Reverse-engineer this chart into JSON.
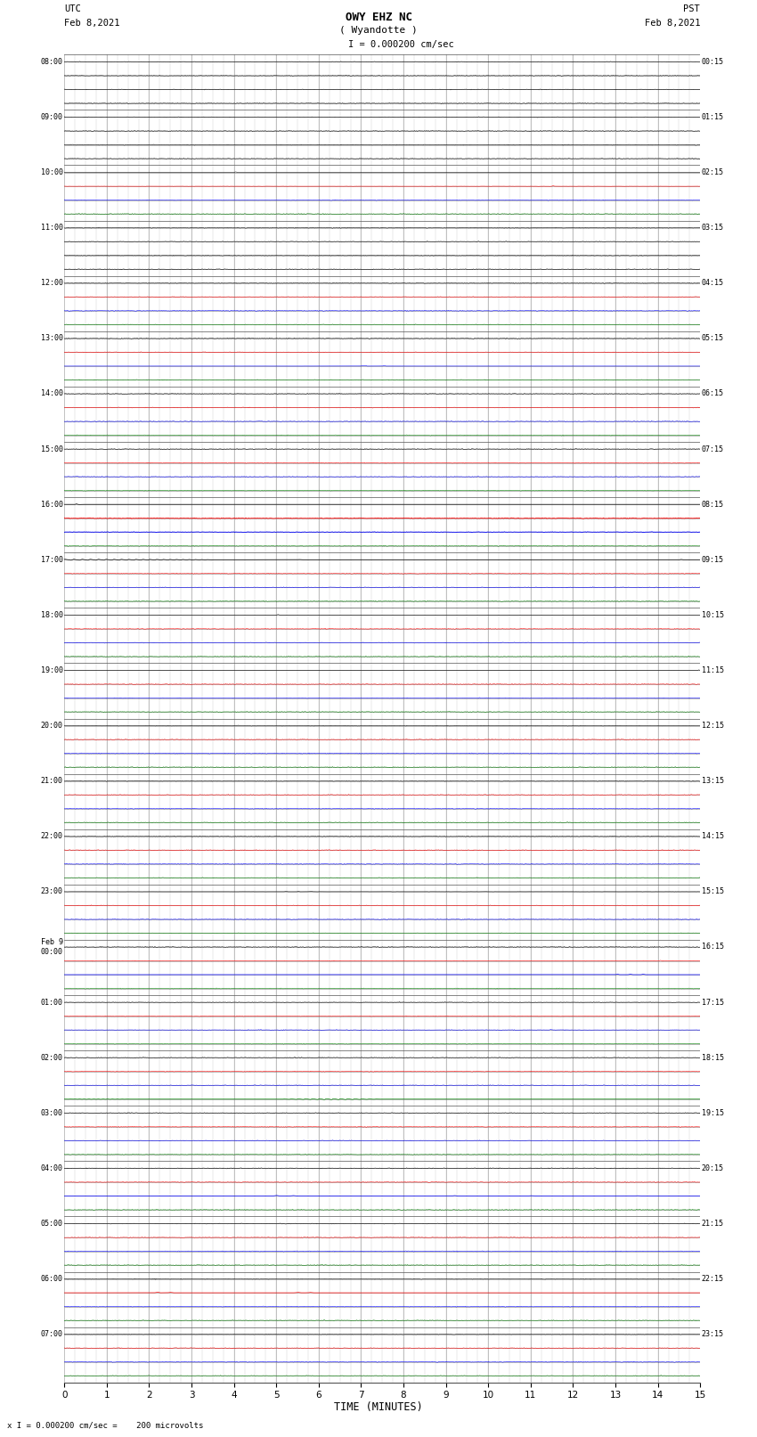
{
  "title_line1": "OWY EHZ NC",
  "title_line2": "( Wyandotte )",
  "scale_label": "I = 0.000200 cm/sec",
  "footer_label": "x I = 0.000200 cm/sec =    200 microvolts",
  "xlabel": "TIME (MINUTES)",
  "background_color": "#ffffff",
  "grid_major_color": "#000000",
  "grid_minor_color": "#888888",
  "fig_width": 8.5,
  "fig_height": 16.13,
  "dpi": 100,
  "num_rows": 24,
  "row_labels_left": [
    "08:00",
    "09:00",
    "10:00",
    "11:00",
    "12:00",
    "13:00",
    "14:00",
    "15:00",
    "16:00",
    "17:00",
    "18:00",
    "19:00",
    "20:00",
    "21:00",
    "22:00",
    "23:00",
    "Feb 9\n00:00",
    "01:00",
    "02:00",
    "03:00",
    "04:00",
    "05:00",
    "06:00",
    "07:00"
  ],
  "row_labels_right": [
    "00:15",
    "01:15",
    "02:15",
    "03:15",
    "04:15",
    "05:15",
    "06:15",
    "07:15",
    "08:15",
    "09:15",
    "10:15",
    "11:15",
    "12:15",
    "13:15",
    "14:15",
    "15:15",
    "16:15",
    "17:15",
    "18:15",
    "19:15",
    "20:15",
    "21:15",
    "22:15",
    "23:15"
  ]
}
